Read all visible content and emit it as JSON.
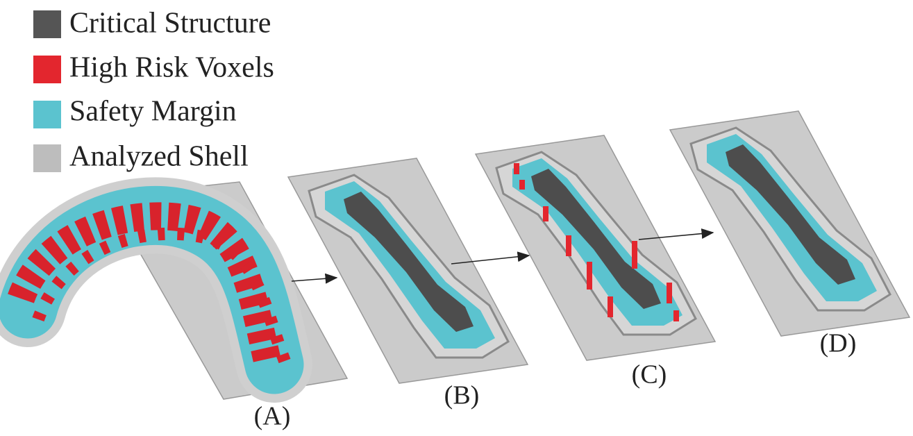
{
  "legend": [
    {
      "label": "Critical Structure"
    },
    {
      "label": "High Risk Voxels"
    },
    {
      "label": "Safety Margin"
    },
    {
      "label": "Analyzed Shell"
    }
  ],
  "panels": [
    {
      "label": "(A)"
    },
    {
      "label": "(B)"
    },
    {
      "label": "(C)"
    },
    {
      "label": "(D)"
    }
  ]
}
